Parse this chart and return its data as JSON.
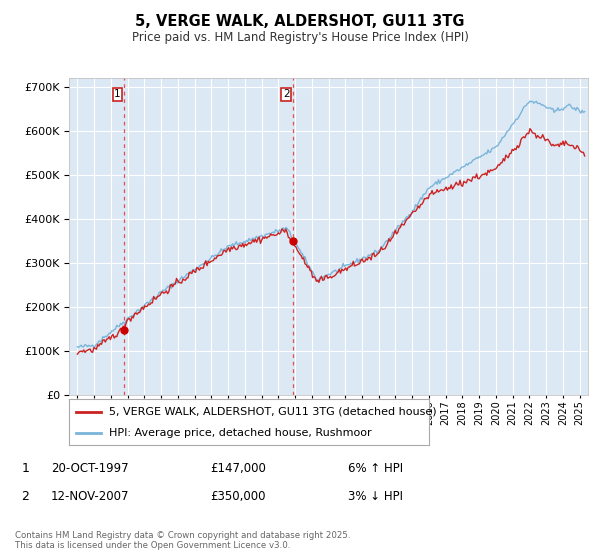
{
  "title": "5, VERGE WALK, ALDERSHOT, GU11 3TG",
  "subtitle": "Price paid vs. HM Land Registry's House Price Index (HPI)",
  "background_color": "#ffffff",
  "plot_bg_color": "#dce9f5",
  "grid_color": "#ffffff",
  "sale1_date": 1997.79,
  "sale1_price": 147000,
  "sale1_label": "1",
  "sale2_date": 2007.87,
  "sale2_price": 350000,
  "sale2_label": "2",
  "legend_line1": "5, VERGE WALK, ALDERSHOT, GU11 3TG (detached house)",
  "legend_line2": "HPI: Average price, detached house, Rushmoor",
  "annot1_date": "20-OCT-1997",
  "annot1_price": "£147,000",
  "annot1_hpi": "6% ↑ HPI",
  "annot2_date": "12-NOV-2007",
  "annot2_price": "£350,000",
  "annot2_hpi": "3% ↓ HPI",
  "footer": "Contains HM Land Registry data © Crown copyright and database right 2025.\nThis data is licensed under the Open Government Licence v3.0.",
  "hpi_color": "#7ab4d8",
  "price_color": "#cc2222",
  "sale_dot_color": "#cc0000",
  "vline_color": "#e05050",
  "xlim_left": 1994.5,
  "xlim_right": 2025.5,
  "ylim_bottom": 0,
  "ylim_top": 720000
}
